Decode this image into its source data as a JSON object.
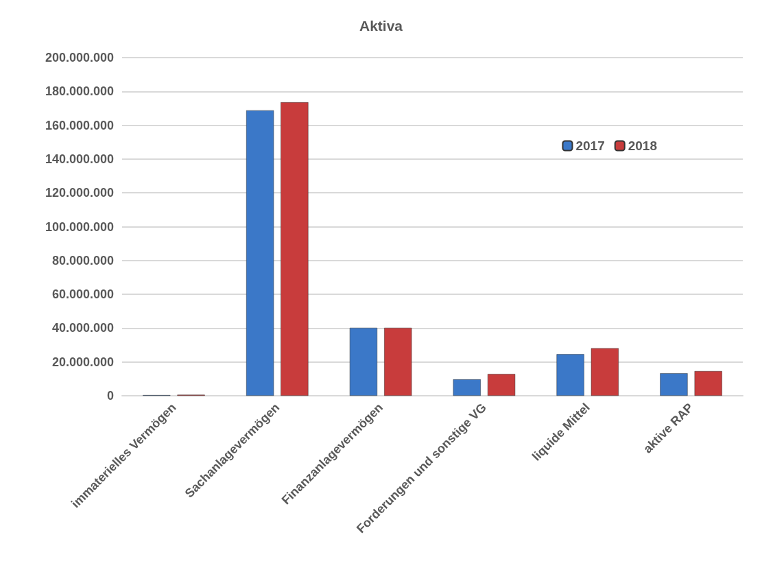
{
  "chart_data": {
    "type": "bar",
    "title": "Aktiva",
    "categories": [
      "immaterielles Vermögen",
      "Sachanlagevermögen",
      "Finanzanlagevermögen",
      "Forderungen und sonstige VG",
      "liquide Mittel",
      "aktive RAP"
    ],
    "series": [
      {
        "name": "2017",
        "color": "#3b78c8",
        "values": [
          400000,
          168800000,
          40200000,
          9700000,
          24600000,
          13300000
        ]
      },
      {
        "name": "2018",
        "color": "#c83c3c",
        "values": [
          600000,
          173600000,
          40200000,
          12900000,
          28100000,
          14600000
        ]
      }
    ],
    "ylim": [
      0,
      200000000
    ],
    "yticks": [
      0,
      {
        "value": 20000000,
        "label": "20.000.000"
      },
      {
        "value": 40000000,
        "label": "40.000.000"
      },
      {
        "value": 60000000,
        "label": "60.000.000"
      },
      {
        "value": 80000000,
        "label": "80.000.000"
      },
      {
        "value": 100000000,
        "label": "100.000.000"
      },
      {
        "value": 120000000,
        "label": "120.000.000"
      },
      {
        "value": 140000000,
        "label": "140.000.000"
      },
      {
        "value": 160000000,
        "label": "160.000.000"
      },
      {
        "value": 180000000,
        "label": "180.000.000"
      },
      {
        "value": 200000000,
        "label": "200.000.000"
      }
    ],
    "grid": "y",
    "legend": "top right"
  }
}
